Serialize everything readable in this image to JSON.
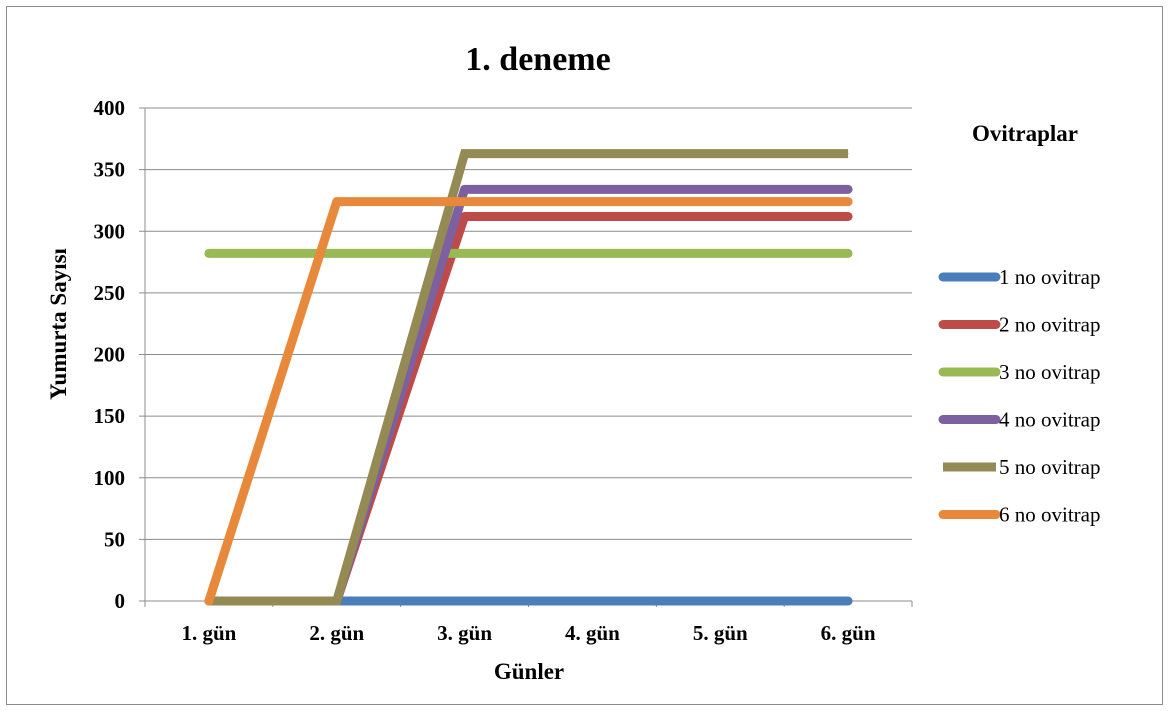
{
  "chart_data": {
    "type": "line",
    "title": "1.  deneme",
    "xlabel": "Günler",
    "ylabel": "Yumurta Sayısı",
    "categories": [
      "1. gün",
      "2. gün",
      "3. gün",
      "4. gün",
      "5. gün",
      "6. gün"
    ],
    "ylim": [
      0,
      400
    ],
    "yticks": [
      0,
      50,
      100,
      150,
      200,
      250,
      300,
      350,
      400
    ],
    "grid": true,
    "legend": {
      "title": "Ovitraplar",
      "position": "right"
    },
    "series": [
      {
        "name": "1 no ovitrap",
        "color": "#4a7ebb",
        "values": [
          0,
          0,
          0,
          0,
          0,
          0
        ]
      },
      {
        "name": "2 no ovitrap",
        "color": "#be4b48",
        "values": [
          0,
          0,
          312,
          312,
          312,
          312
        ]
      },
      {
        "name": "3 no ovitrap",
        "color": "#98b954",
        "values": [
          282,
          282,
          282,
          282,
          282,
          282
        ]
      },
      {
        "name": "4 no ovitrap",
        "color": "#7d60a0",
        "values": [
          0,
          0,
          334,
          334,
          334,
          334
        ]
      },
      {
        "name": "5 no ovitrap",
        "color": "#948a54",
        "values": [
          0,
          0,
          363,
          363,
          363,
          363
        ]
      },
      {
        "name": "6 no ovitrap",
        "color": "#e8883a",
        "values": [
          0,
          324,
          324,
          324,
          324,
          324
        ]
      }
    ]
  }
}
